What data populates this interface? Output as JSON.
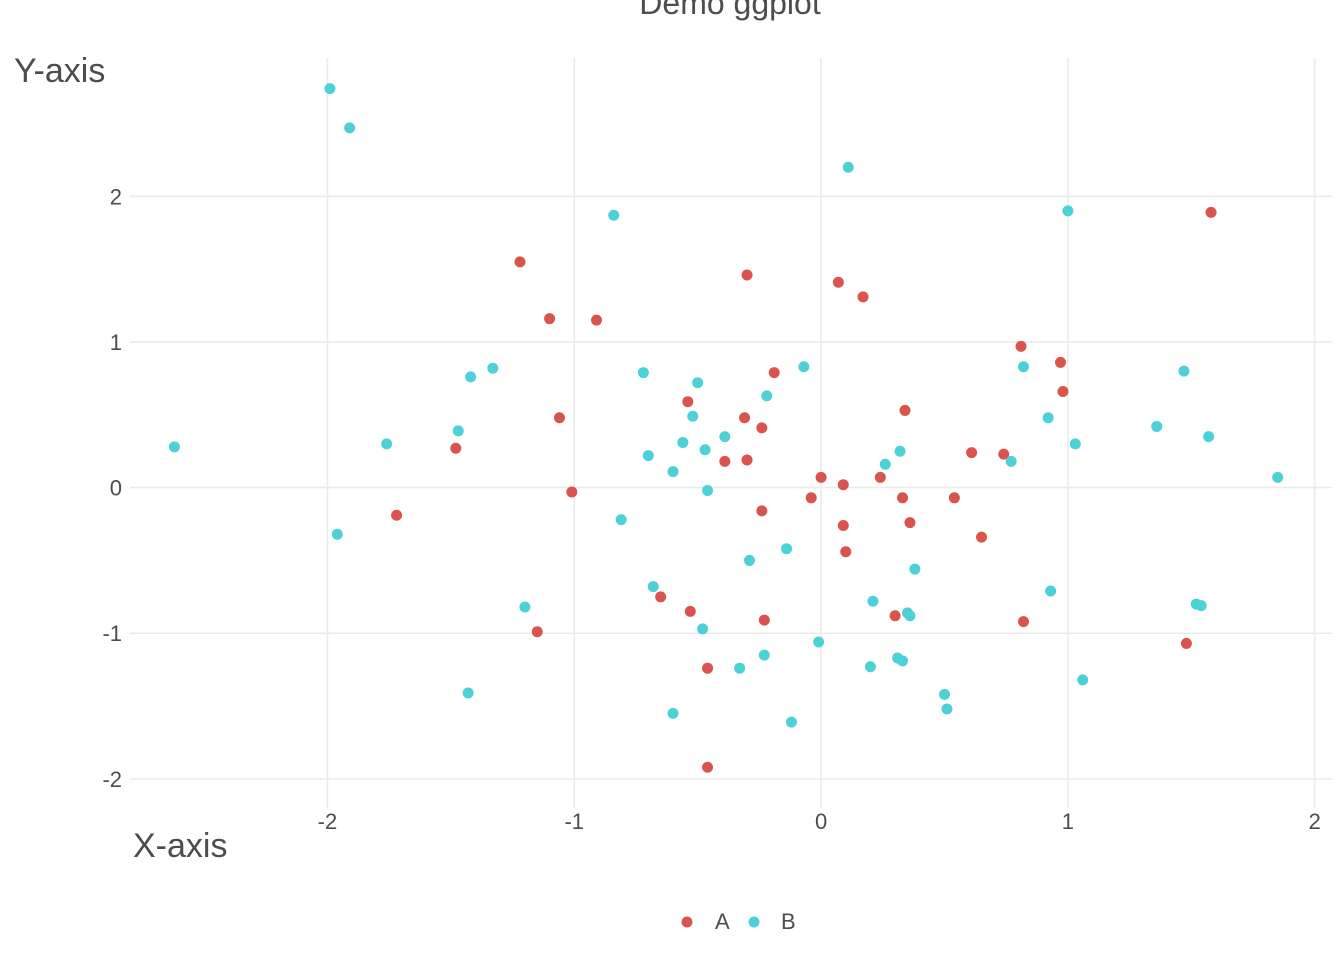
{
  "chart_data": {
    "type": "scatter",
    "title": "Demo ggplot",
    "xlabel": "X-axis",
    "ylabel": "Y-axis",
    "xlim": [
      -2.8,
      2.07
    ],
    "ylim": [
      -2.2,
      2.95
    ],
    "x_ticks": [
      -2,
      -1,
      0,
      1,
      2
    ],
    "y_ticks": [
      -2,
      -1,
      0,
      1,
      2
    ],
    "x_tick_labels": [
      "-2",
      "-1",
      "0",
      "1",
      "2"
    ],
    "y_tick_labels": [
      "-2",
      "-1",
      "0",
      "1",
      "2"
    ],
    "grid": true,
    "legend_position": "bottom",
    "legend": [
      {
        "label": "A",
        "color": "#d9544d"
      },
      {
        "label": "B",
        "color": "#4dd1d9"
      }
    ],
    "series": [
      {
        "name": "A",
        "color": "#d9544d",
        "points": [
          [
            1.58,
            1.89
          ],
          [
            -1.22,
            1.55
          ],
          [
            -0.3,
            1.46
          ],
          [
            0.07,
            1.41
          ],
          [
            0.17,
            1.31
          ],
          [
            -1.1,
            1.16
          ],
          [
            -0.91,
            1.15
          ],
          [
            0.81,
            0.97
          ],
          [
            0.97,
            0.86
          ],
          [
            -0.19,
            0.79
          ],
          [
            0.98,
            0.66
          ],
          [
            -0.54,
            0.59
          ],
          [
            0.34,
            0.53
          ],
          [
            -1.06,
            0.48
          ],
          [
            -0.31,
            0.48
          ],
          [
            -0.24,
            0.41
          ],
          [
            -1.48,
            0.27
          ],
          [
            0.61,
            0.24
          ],
          [
            0.74,
            0.23
          ],
          [
            -0.39,
            0.18
          ],
          [
            -0.3,
            0.19
          ],
          [
            0.0,
            0.07
          ],
          [
            0.24,
            0.07
          ],
          [
            0.09,
            0.02
          ],
          [
            -1.01,
            -0.03
          ],
          [
            -0.04,
            -0.07
          ],
          [
            0.33,
            -0.07
          ],
          [
            0.54,
            -0.07
          ],
          [
            -1.72,
            -0.19
          ],
          [
            -0.24,
            -0.16
          ],
          [
            0.09,
            -0.26
          ],
          [
            0.36,
            -0.24
          ],
          [
            0.65,
            -0.34
          ],
          [
            0.1,
            -0.44
          ],
          [
            -0.65,
            -0.75
          ],
          [
            -0.53,
            -0.85
          ],
          [
            0.3,
            -0.88
          ],
          [
            -0.23,
            -0.91
          ],
          [
            0.82,
            -0.92
          ],
          [
            -1.15,
            -0.99
          ],
          [
            1.48,
            -1.07
          ],
          [
            -0.46,
            -1.24
          ],
          [
            -0.46,
            -1.92
          ]
        ]
      },
      {
        "name": "B",
        "color": "#4dd1d9",
        "points": [
          [
            -1.99,
            2.74
          ],
          [
            -1.91,
            2.47
          ],
          [
            0.11,
            2.2
          ],
          [
            1.0,
            1.9
          ],
          [
            -0.84,
            1.87
          ],
          [
            -0.07,
            0.83
          ],
          [
            0.82,
            0.83
          ],
          [
            -1.33,
            0.82
          ],
          [
            1.47,
            0.8
          ],
          [
            -0.72,
            0.79
          ],
          [
            -1.42,
            0.76
          ],
          [
            -0.5,
            0.72
          ],
          [
            -0.22,
            0.63
          ],
          [
            -0.52,
            0.49
          ],
          [
            0.92,
            0.48
          ],
          [
            1.36,
            0.42
          ],
          [
            -1.47,
            0.39
          ],
          [
            -0.39,
            0.35
          ],
          [
            1.57,
            0.35
          ],
          [
            -1.76,
            0.3
          ],
          [
            -0.56,
            0.31
          ],
          [
            1.03,
            0.3
          ],
          [
            -2.62,
            0.28
          ],
          [
            -0.47,
            0.26
          ],
          [
            0.32,
            0.25
          ],
          [
            -0.7,
            0.22
          ],
          [
            0.77,
            0.18
          ],
          [
            0.26,
            0.16
          ],
          [
            -0.6,
            0.11
          ],
          [
            1.85,
            0.07
          ],
          [
            -0.46,
            -0.02
          ],
          [
            -0.81,
            -0.22
          ],
          [
            -1.96,
            -0.32
          ],
          [
            -0.14,
            -0.42
          ],
          [
            -0.29,
            -0.5
          ],
          [
            0.38,
            -0.56
          ],
          [
            -0.68,
            -0.68
          ],
          [
            0.93,
            -0.71
          ],
          [
            0.21,
            -0.78
          ],
          [
            1.52,
            -0.8
          ],
          [
            1.54,
            -0.81
          ],
          [
            -1.2,
            -0.82
          ],
          [
            0.35,
            -0.86
          ],
          [
            0.36,
            -0.88
          ],
          [
            -0.48,
            -0.97
          ],
          [
            -0.01,
            -1.06
          ],
          [
            -0.23,
            -1.15
          ],
          [
            0.31,
            -1.17
          ],
          [
            0.33,
            -1.19
          ],
          [
            0.2,
            -1.23
          ],
          [
            -0.33,
            -1.24
          ],
          [
            1.06,
            -1.32
          ],
          [
            -1.43,
            -1.41
          ],
          [
            0.5,
            -1.42
          ],
          [
            0.51,
            -1.52
          ],
          [
            -0.6,
            -1.55
          ],
          [
            -0.12,
            -1.61
          ]
        ]
      }
    ]
  }
}
